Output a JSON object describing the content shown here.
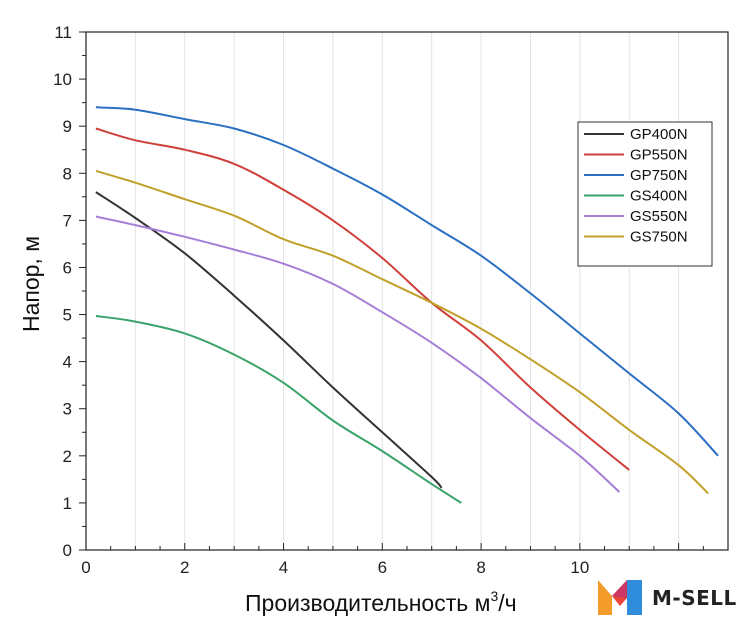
{
  "chart_data": {
    "type": "line",
    "xlabel": "Производительность м",
    "xlabel_sup": "3",
    "xlabel_tail": "/ч",
    "ylabel": "Напор, м",
    "xlim": [
      0,
      13
    ],
    "ylim": [
      0,
      11
    ],
    "x_ticks": [
      0,
      2,
      4,
      6,
      8,
      10
    ],
    "y_ticks": [
      0,
      1,
      2,
      3,
      4,
      5,
      6,
      7,
      8,
      9,
      10,
      11
    ],
    "grid": "vertical",
    "legend_position": "right",
    "series": [
      {
        "name": "GP400N",
        "color": "#333333",
        "points": [
          [
            0.2,
            7.6
          ],
          [
            1,
            7.05
          ],
          [
            2,
            6.3
          ],
          [
            3,
            5.4
          ],
          [
            4,
            4.45
          ],
          [
            5,
            3.45
          ],
          [
            6,
            2.5
          ],
          [
            7,
            1.55
          ],
          [
            7.2,
            1.32
          ]
        ]
      },
      {
        "name": "GP550N",
        "color": "#d0403a",
        "points": [
          [
            0.2,
            8.95
          ],
          [
            1,
            8.7
          ],
          [
            2,
            8.5
          ],
          [
            3,
            8.2
          ],
          [
            4,
            7.65
          ],
          [
            5,
            7.0
          ],
          [
            6,
            6.2
          ],
          [
            7,
            5.25
          ],
          [
            8,
            4.45
          ],
          [
            9,
            3.45
          ],
          [
            10,
            2.55
          ],
          [
            11,
            1.7
          ]
        ]
      },
      {
        "name": "GP750N",
        "color": "#2a6fc2",
        "points": [
          [
            0.2,
            9.4
          ],
          [
            1,
            9.35
          ],
          [
            2,
            9.15
          ],
          [
            3,
            8.95
          ],
          [
            4,
            8.6
          ],
          [
            5,
            8.1
          ],
          [
            6,
            7.55
          ],
          [
            7,
            6.9
          ],
          [
            8,
            6.25
          ],
          [
            9,
            5.45
          ],
          [
            10,
            4.6
          ],
          [
            11,
            3.75
          ],
          [
            12,
            2.9
          ],
          [
            12.8,
            2.0
          ]
        ]
      },
      {
        "name": "GS400N",
        "color": "#3aa36a",
        "points": [
          [
            0.2,
            4.97
          ],
          [
            1,
            4.85
          ],
          [
            2,
            4.6
          ],
          [
            3,
            4.15
          ],
          [
            4,
            3.55
          ],
          [
            5,
            2.75
          ],
          [
            6,
            2.1
          ],
          [
            7,
            1.4
          ],
          [
            7.6,
            1.0
          ]
        ]
      },
      {
        "name": "GS550N",
        "color": "#a57fd6",
        "points": [
          [
            0.2,
            7.08
          ],
          [
            1,
            6.9
          ],
          [
            2,
            6.65
          ],
          [
            3,
            6.38
          ],
          [
            4,
            6.08
          ],
          [
            5,
            5.65
          ],
          [
            6,
            5.05
          ],
          [
            7,
            4.4
          ],
          [
            8,
            3.65
          ],
          [
            9,
            2.8
          ],
          [
            10,
            2.0
          ],
          [
            10.8,
            1.23
          ]
        ]
      },
      {
        "name": "GS750N",
        "color": "#c1a02a",
        "points": [
          [
            0.2,
            8.05
          ],
          [
            1,
            7.8
          ],
          [
            2,
            7.45
          ],
          [
            3,
            7.1
          ],
          [
            4,
            6.6
          ],
          [
            5,
            6.25
          ],
          [
            6,
            5.75
          ],
          [
            7,
            5.25
          ],
          [
            8,
            4.7
          ],
          [
            9,
            4.05
          ],
          [
            10,
            3.35
          ],
          [
            11,
            2.55
          ],
          [
            12,
            1.8
          ],
          [
            12.6,
            1.2
          ]
        ]
      }
    ]
  },
  "branding": {
    "logo_text": "M-SELL",
    "logo_colors": {
      "orange": "#f39c2b",
      "red": "#e8453c",
      "blue": "#2f8ddb"
    }
  }
}
